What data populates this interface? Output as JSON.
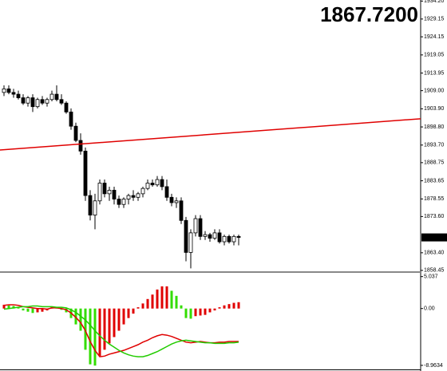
{
  "chart_data": [
    {
      "type": "candlestick",
      "price_display": "1867.7200",
      "up_color": "#ffffff",
      "down_color": "#000000",
      "price_display_color": "#e00000",
      "open": [
        1908.5,
        1909.5,
        1908.5,
        1908,
        1907,
        1905.5,
        1907,
        1904.5,
        1906.5,
        1905.5,
        1906.5,
        1908,
        1906.5,
        1905.5,
        1903,
        1899,
        1895,
        1892,
        1879.5,
        1874,
        1878,
        1883,
        1880,
        1881,
        1878.5,
        1877,
        1878.5,
        1879.5,
        1879,
        1880,
        1881.5,
        1883,
        1882.5,
        1884,
        1882,
        1879,
        1877.5,
        1878,
        1872.5,
        1863.5,
        1869,
        1873,
        1868,
        1868.5,
        1867.5,
        1869,
        1866.5,
        1868,
        1866.5,
        1868
      ],
      "high": [
        1910.5,
        1910.5,
        1909.5,
        1909,
        1908,
        1907.5,
        1908,
        1907,
        1907.5,
        1907,
        1909,
        1910.5,
        1908,
        1906,
        1904,
        1900,
        1897,
        1893,
        1881,
        1880,
        1884,
        1884,
        1882,
        1882,
        1879.5,
        1879,
        1880,
        1881,
        1880.5,
        1882,
        1884,
        1884,
        1885,
        1885,
        1884,
        1880,
        1879,
        1879,
        1873.5,
        1870,
        1874,
        1874,
        1869.5,
        1869,
        1870,
        1870,
        1868.5,
        1868.5,
        1868.5,
        1868.5
      ],
      "low": [
        1907.5,
        1908,
        1907,
        1906.5,
        1905,
        1904.5,
        1903,
        1904,
        1905,
        1904.5,
        1906,
        1906,
        1905,
        1902.5,
        1898,
        1894.5,
        1891,
        1878,
        1872.5,
        1870,
        1877,
        1879,
        1878,
        1877,
        1876,
        1876,
        1877,
        1878,
        1878,
        1879,
        1881,
        1882,
        1882,
        1881,
        1878,
        1876.5,
        1876,
        1871.5,
        1861,
        1859,
        1868,
        1867,
        1867,
        1866.5,
        1867,
        1866,
        1865.5,
        1866,
        1865.5,
        1865.5
      ],
      "close": [
        1909.5,
        1908.5,
        1908,
        1907,
        1905.5,
        1907,
        1904.5,
        1906.5,
        1905.5,
        1906.5,
        1908,
        1906.5,
        1905.5,
        1903,
        1899,
        1895,
        1892,
        1879.5,
        1874,
        1878,
        1883,
        1880,
        1881,
        1878.5,
        1877,
        1878.5,
        1879.5,
        1879,
        1880,
        1881.5,
        1883,
        1882.5,
        1884,
        1882,
        1879,
        1877.5,
        1878,
        1872.5,
        1863.5,
        1869,
        1873,
        1868,
        1868.5,
        1867.5,
        1869,
        1866.5,
        1868,
        1866.5,
        1868,
        1867.72
      ],
      "last_price": {
        "value": 1867.72,
        "label": "1867.72"
      },
      "trendline": {
        "color": "#e00000",
        "values": [
          1892.3,
          1901.1
        ]
      },
      "ylim": [
        1858.2,
        1934.5
      ],
      "yticks": [
        {
          "value": 1934.2,
          "label": "1934.20"
        },
        1929.15,
        1924.15,
        1919.05,
        1913.95,
        {
          "value": 1909,
          "label": "1909.00"
        },
        {
          "value": 1903.9,
          "label": "1903.90"
        },
        {
          "value": 1898.8,
          "label": "1898.80"
        },
        {
          "value": 1893.7,
          "label": "1893.70"
        },
        1888.75,
        1883.65,
        1878.55,
        {
          "value": 1873.6,
          "label": "1873.60"
        },
        {
          "value": 1863.4,
          "label": "1863.40"
        },
        1858.45
      ]
    },
    {
      "type": "macd",
      "rise_color": "#e00000",
      "fall_color": "#33dd00",
      "histogram": [
        0.6,
        0.5,
        0.4,
        0.2,
        -0.3,
        -0.5,
        -0.7,
        -0.6,
        -0.5,
        -0.3,
        0.2,
        0.1,
        -0.2,
        -0.6,
        -1.5,
        -2.5,
        -3.5,
        -6.5,
        -8.8,
        -9.0,
        -7.5,
        -6.5,
        -5.5,
        -4.5,
        -3.5,
        -2.5,
        -1.5,
        -0.8,
        0.2,
        0.8,
        1.5,
        2.2,
        3.0,
        3.5,
        3.5,
        2.8,
        2.0,
        0.5,
        -1.5,
        -1.6,
        -1.2,
        -1.1,
        -1.0,
        -0.6,
        -0.3,
        0.2,
        0.5,
        0.7,
        0.9,
        1.0
      ],
      "series": [
        {
          "color": "#e00000",
          "values": [
            0.5,
            0.6,
            0.6,
            0.5,
            0.3,
            0.2,
            0.1,
            0.0,
            0.0,
            -0.1,
            0.1,
            0.1,
            0.0,
            -0.2,
            -0.7,
            -1.4,
            -2.2,
            -3.5,
            -5.2,
            -6.6,
            -7.6,
            -7.5,
            -7.2,
            -7.0,
            -6.8,
            -6.6,
            -6.3,
            -6.0,
            -5.7,
            -5.3,
            -5.0,
            -4.6,
            -4.3,
            -4.1,
            -4.2,
            -4.4,
            -4.7,
            -5.0,
            -5.3,
            -5.4,
            -5.3,
            -5.2,
            -5.3,
            -5.4,
            -5.4,
            -5.3,
            -5.3,
            -5.2,
            -5.2,
            -5.2
          ]
        },
        {
          "color": "#22cc00",
          "values": [
            -0.1,
            0.0,
            0.1,
            0.2,
            0.3,
            0.3,
            0.4,
            0.4,
            0.3,
            0.3,
            0.3,
            0.2,
            0.2,
            0.1,
            -0.2,
            -0.6,
            -1.2,
            -1.8,
            -2.6,
            -3.5,
            -4.3,
            -5.0,
            -5.6,
            -6.1,
            -6.6,
            -7.0,
            -7.3,
            -7.5,
            -7.6,
            -7.6,
            -7.4,
            -7.1,
            -6.8,
            -6.4,
            -6.0,
            -5.6,
            -5.3,
            -5.1,
            -5.0,
            -5.1,
            -5.2,
            -5.3,
            -5.4,
            -5.4,
            -5.5,
            -5.5,
            -5.5,
            -5.4,
            -5.4,
            -5.3
          ]
        }
      ],
      "ylim": [
        -9.6,
        5.5
      ],
      "yticks": [
        5.037,
        {
          "value": 0,
          "label": "0.00"
        },
        -8.9634
      ]
    }
  ]
}
